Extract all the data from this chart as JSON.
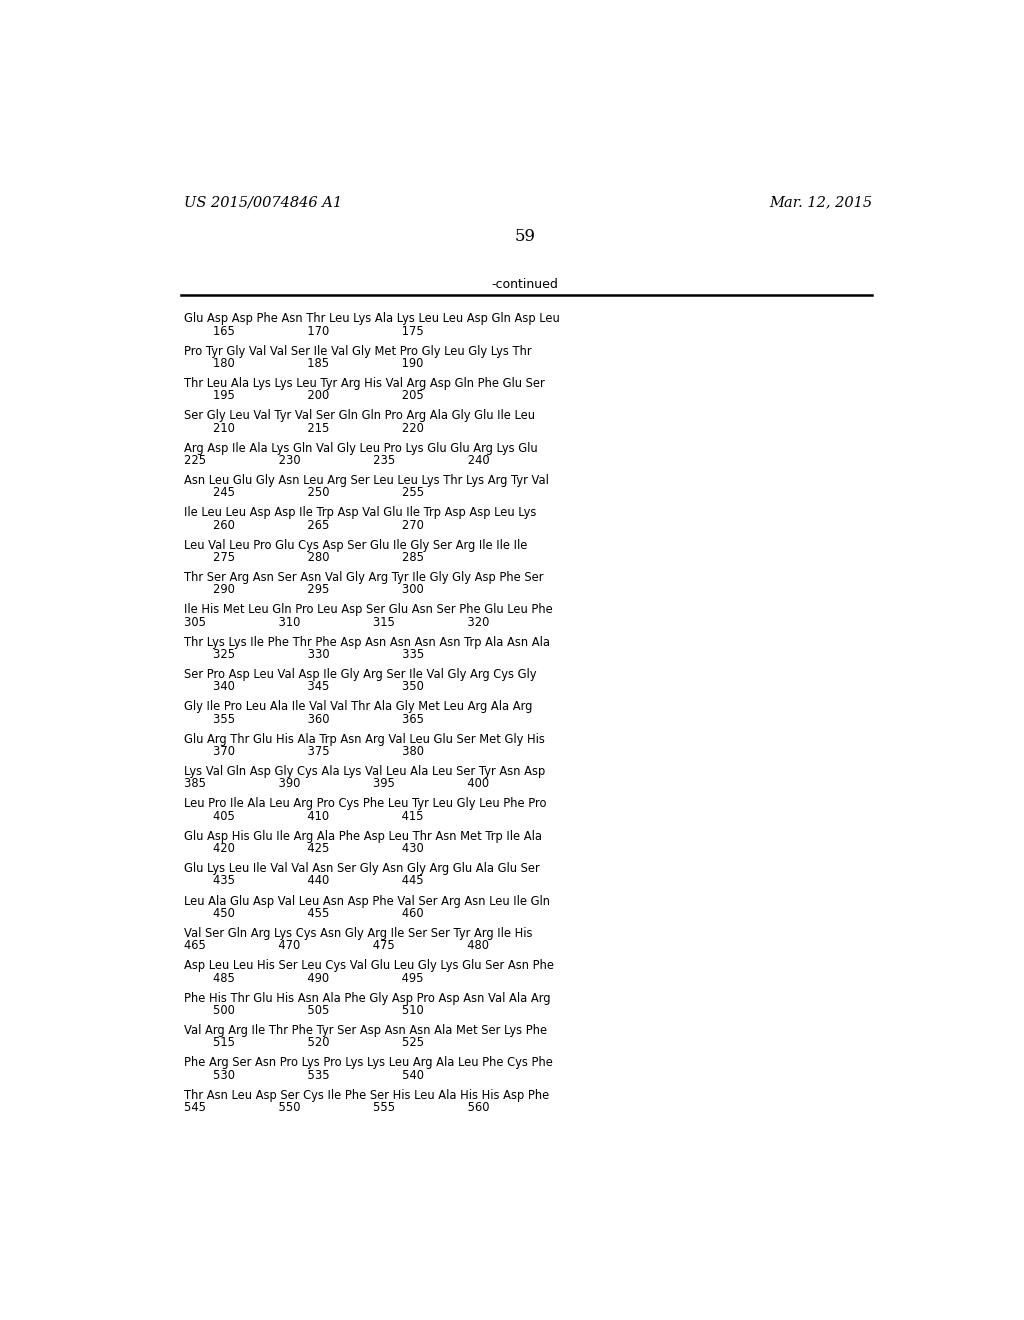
{
  "header_left": "US 2015/0074846 A1",
  "header_right": "Mar. 12, 2015",
  "page_number": "59",
  "continued_label": "-continued",
  "bg_color": "#ffffff",
  "text_color": "#000000",
  "sequence_blocks": [
    [
      "Glu Asp Asp Phe Asn Thr Leu Lys Ala Lys Leu Leu Asp Gln Asp Leu",
      "        165                    170                    175"
    ],
    [
      "Pro Tyr Gly Val Val Ser Ile Val Gly Met Pro Gly Leu Gly Lys Thr",
      "        180                    185                    190"
    ],
    [
      "Thr Leu Ala Lys Lys Leu Tyr Arg His Val Arg Asp Gln Phe Glu Ser",
      "        195                    200                    205"
    ],
    [
      "Ser Gly Leu Val Tyr Val Ser Gln Gln Pro Arg Ala Gly Glu Ile Leu",
      "        210                    215                    220"
    ],
    [
      "Arg Asp Ile Ala Lys Gln Val Gly Leu Pro Lys Glu Glu Arg Lys Glu",
      "225                    230                    235                    240"
    ],
    [
      "Asn Leu Glu Gly Asn Leu Arg Ser Leu Leu Lys Thr Lys Arg Tyr Val",
      "        245                    250                    255"
    ],
    [
      "Ile Leu Leu Asp Asp Ile Trp Asp Val Glu Ile Trp Asp Asp Leu Lys",
      "        260                    265                    270"
    ],
    [
      "Leu Val Leu Pro Glu Cys Asp Ser Glu Ile Gly Ser Arg Ile Ile Ile",
      "        275                    280                    285"
    ],
    [
      "Thr Ser Arg Asn Ser Asn Val Gly Arg Tyr Ile Gly Gly Asp Phe Ser",
      "        290                    295                    300"
    ],
    [
      "Ile His Met Leu Gln Pro Leu Asp Ser Glu Asn Ser Phe Glu Leu Phe",
      "305                    310                    315                    320"
    ],
    [
      "Thr Lys Lys Ile Phe Thr Phe Asp Asn Asn Asn Asn Trp Ala Asn Ala",
      "        325                    330                    335"
    ],
    [
      "Ser Pro Asp Leu Val Asp Ile Gly Arg Ser Ile Val Gly Arg Cys Gly",
      "        340                    345                    350"
    ],
    [
      "Gly Ile Pro Leu Ala Ile Val Val Thr Ala Gly Met Leu Arg Ala Arg",
      "        355                    360                    365"
    ],
    [
      "Glu Arg Thr Glu His Ala Trp Asn Arg Val Leu Glu Ser Met Gly His",
      "        370                    375                    380"
    ],
    [
      "Lys Val Gln Asp Gly Cys Ala Lys Val Leu Ala Leu Ser Tyr Asn Asp",
      "385                    390                    395                    400"
    ],
    [
      "Leu Pro Ile Ala Leu Arg Pro Cys Phe Leu Tyr Leu Gly Leu Phe Pro",
      "        405                    410                    415"
    ],
    [
      "Glu Asp His Glu Ile Arg Ala Phe Asp Leu Thr Asn Met Trp Ile Ala",
      "        420                    425                    430"
    ],
    [
      "Glu Lys Leu Ile Val Val Asn Ser Gly Asn Gly Arg Glu Ala Glu Ser",
      "        435                    440                    445"
    ],
    [
      "Leu Ala Glu Asp Val Leu Asn Asp Phe Val Ser Arg Asn Leu Ile Gln",
      "        450                    455                    460"
    ],
    [
      "Val Ser Gln Arg Lys Cys Asn Gly Arg Ile Ser Ser Tyr Arg Ile His",
      "465                    470                    475                    480"
    ],
    [
      "Asp Leu Leu His Ser Leu Cys Val Glu Leu Gly Lys Glu Ser Asn Phe",
      "        485                    490                    495"
    ],
    [
      "Phe His Thr Glu His Asn Ala Phe Gly Asp Pro Asp Asn Val Ala Arg",
      "        500                    505                    510"
    ],
    [
      "Val Arg Arg Ile Thr Phe Tyr Ser Asp Asn Asn Ala Met Ser Lys Phe",
      "        515                    520                    525"
    ],
    [
      "Phe Arg Ser Asn Pro Lys Pro Lys Lys Leu Arg Ala Leu Phe Cys Phe",
      "        530                    535                    540"
    ],
    [
      "Thr Asn Leu Asp Ser Cys Ile Phe Ser His Leu Ala His His Asp Phe",
      "545                    550                    555                    560"
    ]
  ]
}
